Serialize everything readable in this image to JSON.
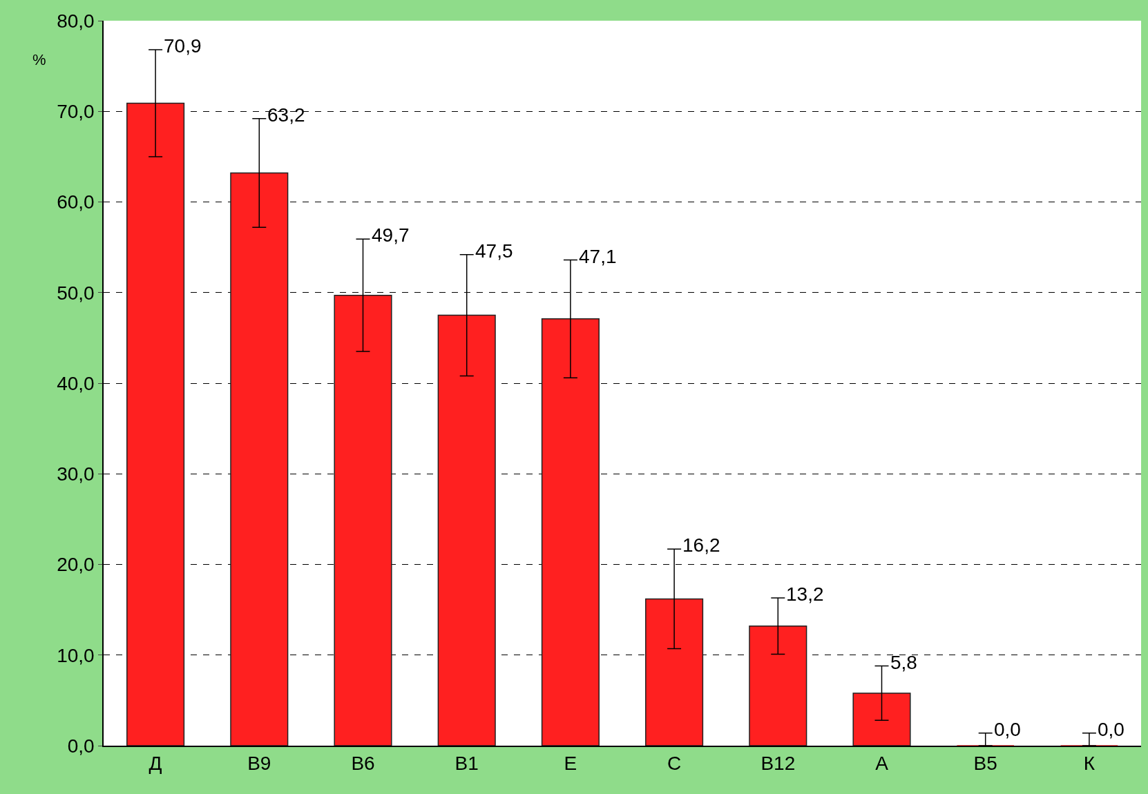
{
  "chart_data": {
    "type": "bar",
    "ylabel": "%",
    "categories": [
      "Д",
      "В9",
      "В6",
      "В1",
      "Е",
      "С",
      "В12",
      "А",
      "В5",
      "К"
    ],
    "values": [
      70.9,
      63.2,
      49.7,
      47.5,
      47.1,
      16.2,
      13.2,
      5.8,
      0.0,
      0.0
    ],
    "errors": [
      5.9,
      6.0,
      6.2,
      6.7,
      6.5,
      5.5,
      3.1,
      3.0,
      [
        0,
        1.4
      ],
      [
        0,
        1.4
      ]
    ],
    "value_labels": [
      "70,9",
      "63,2",
      "49,7",
      "47,5",
      "47,1",
      "16,2",
      "13,2",
      "5,8",
      "0,0",
      "0,0"
    ],
    "color": "#ff2020",
    "ylim": [
      0,
      80
    ],
    "yticks": [
      {
        "value": 0,
        "label": "0,0"
      },
      {
        "value": 10,
        "label": "10,0"
      },
      {
        "value": 20,
        "label": "20,0"
      },
      {
        "value": 30,
        "label": "30,0"
      },
      {
        "value": 40,
        "label": "40,0"
      },
      {
        "value": 50,
        "label": "50,0"
      },
      {
        "value": 60,
        "label": "60,0"
      },
      {
        "value": 70,
        "label": "70,0"
      },
      {
        "value": 80,
        "label": "80,0"
      }
    ],
    "grid": "y",
    "legend": false
  }
}
